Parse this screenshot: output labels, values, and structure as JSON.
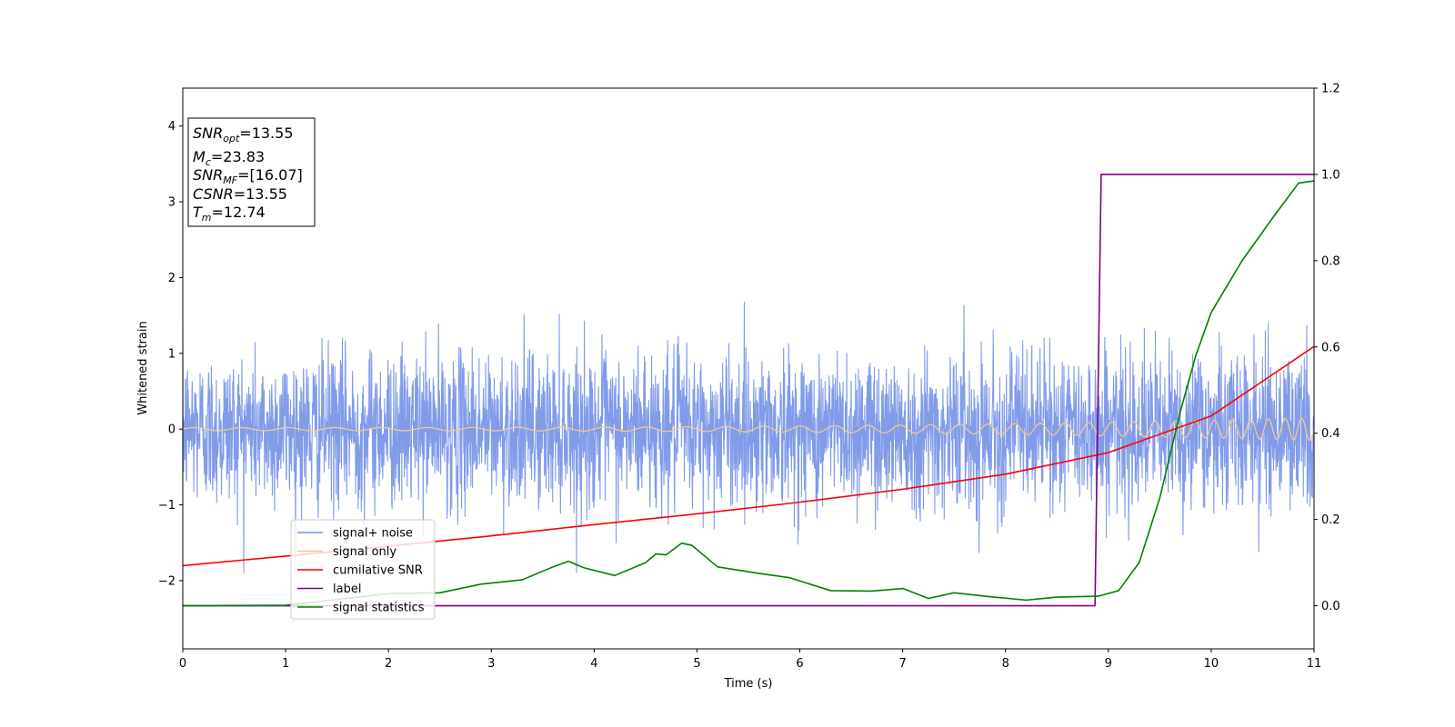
{
  "chart_data": {
    "type": "line",
    "xlabel": "Time (s)",
    "ylabel": "Whitened strain",
    "ylabel_right": "",
    "xlim": [
      0,
      11
    ],
    "ylim": [
      -2.9,
      4.5
    ],
    "ylim_right": [
      -0.1,
      1.2
    ],
    "x_ticks": [
      "0",
      "1",
      "2",
      "3",
      "4",
      "5",
      "6",
      "7",
      "8",
      "9",
      "10",
      "11"
    ],
    "y_ticks": [
      "−2",
      "−1",
      "0",
      "1",
      "2",
      "3",
      "4"
    ],
    "y_ticks_right": [
      "0.0",
      "0.2",
      "0.4",
      "0.6",
      "0.8",
      "1.0",
      "1.2"
    ],
    "grid": false,
    "info_box": [
      {
        "sym": "SNR",
        "sub": "opt",
        "rest": "=13.55"
      },
      {
        "sym": "M",
        "sub": "c",
        "rest": "=23.83"
      },
      {
        "sym": "SNR",
        "sub": "MF",
        "rest": "=[16.07]"
      },
      {
        "sym": "CSNR",
        "sub": "",
        "rest": "=13.55"
      },
      {
        "sym": "T",
        "sub": "m",
        "rest": "=12.74"
      }
    ],
    "legend": {
      "position": "lower-left",
      "entries": [
        {
          "label": "signal+ noise",
          "color": "#7a96e8"
        },
        {
          "label": "signal only",
          "color": "#f5c98a"
        },
        {
          "label": "cumilative SNR",
          "color": "#ff0000"
        },
        {
          "label": "label",
          "color": "#800080"
        },
        {
          "label": "signal statistics",
          "color": "#008000"
        }
      ]
    },
    "series": [
      {
        "name": "signal+ noise",
        "axis": "left",
        "color": "#7a96e8",
        "description_stats": {
          "mean": 0.0,
          "approx_std": 0.5,
          "approx_min": -1.9,
          "approx_max": 1.85
        }
      },
      {
        "name": "signal only",
        "axis": "left",
        "color": "#f5c98a",
        "chirp": {
          "amp_start": 0.02,
          "amp_end": 0.15,
          "f_start_hz": 2.2,
          "f_end_hz": 6.5
        }
      },
      {
        "name": "cumilative SNR",
        "axis": "right",
        "color": "#ff0000",
        "x": [
          0,
          1,
          2,
          3,
          4,
          5,
          6,
          7,
          8,
          9,
          10,
          11
        ],
        "y": [
          0.093,
          0.115,
          0.138,
          0.162,
          0.188,
          0.213,
          0.24,
          0.27,
          0.305,
          0.355,
          0.44,
          0.601
        ]
      },
      {
        "name": "label",
        "axis": "right",
        "color": "#800080",
        "x": [
          0,
          8.87,
          8.93,
          11
        ],
        "y": [
          0.0,
          0.0,
          1.0,
          1.0
        ]
      },
      {
        "name": "signal statistics",
        "axis": "right",
        "color": "#008000",
        "x": [
          0,
          1,
          2,
          2.5,
          2.9,
          3.3,
          3.6,
          3.75,
          3.9,
          4.2,
          4.5,
          4.6,
          4.7,
          4.85,
          4.95,
          5.2,
          5.6,
          5.9,
          6.3,
          6.7,
          7.0,
          7.25,
          7.5,
          7.8,
          8.2,
          8.5,
          8.9,
          9.1,
          9.3,
          9.5,
          9.7,
          9.85,
          10.0,
          10.3,
          10.6,
          10.85,
          11.0
        ],
        "y": [
          0.0,
          0.001,
          0.028,
          0.03,
          0.05,
          0.06,
          0.09,
          0.103,
          0.088,
          0.07,
          0.1,
          0.12,
          0.118,
          0.145,
          0.14,
          0.09,
          0.075,
          0.065,
          0.035,
          0.034,
          0.04,
          0.017,
          0.03,
          0.022,
          0.013,
          0.02,
          0.022,
          0.035,
          0.1,
          0.25,
          0.45,
          0.58,
          0.68,
          0.8,
          0.9,
          0.98,
          0.985
        ]
      }
    ]
  }
}
